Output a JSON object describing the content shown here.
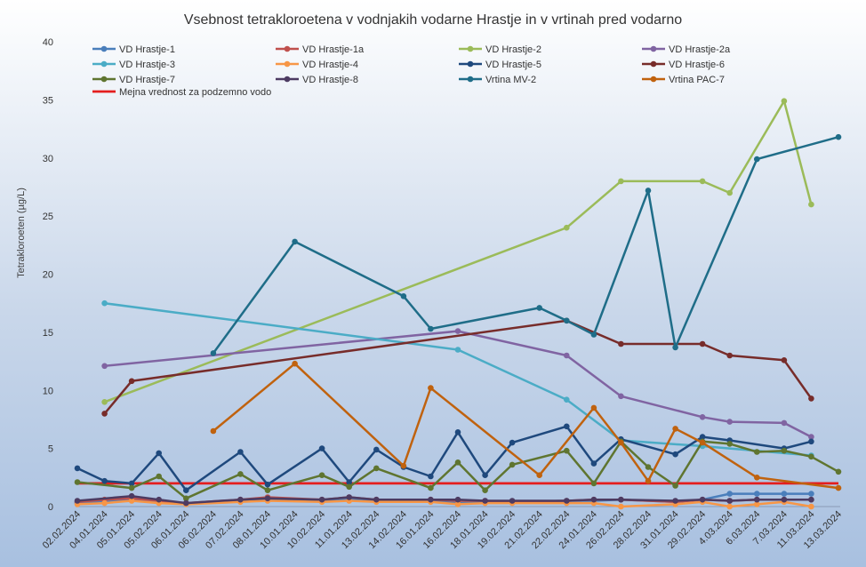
{
  "chart_data": {
    "type": "line",
    "title": "Vsebnost tetrakloroetena v vodnjakih vodarne Hrastje in v vrtinah pred vodarno",
    "ylabel": "Tetrakloroeten  (µg/L)",
    "xlabel": "",
    "ylim": [
      0,
      40
    ],
    "yticks": [
      0,
      5,
      10,
      15,
      20,
      25,
      30,
      35,
      40
    ],
    "grid": false,
    "legend_position": "top",
    "categories": [
      "02.02.2024",
      "04.01.2024",
      "05.01.2024",
      "05.02.2024",
      "06.01.2024",
      "06.02.2024",
      "07.02.2024",
      "08.01.2024",
      "10.01.2024",
      "10.02.2024",
      "11.01.2024",
      "13.02.2024",
      "14.02.2024",
      "16.01.2024",
      "16.02.2024",
      "18.01.2024",
      "19.02.2024",
      "21.02.2024",
      "22.02.2024",
      "24.01.2024",
      "26.02.2024",
      "28.02.2024",
      "31.01.2024",
      "29.02.2024",
      "4.03.2024",
      "6.03.2024",
      "7.03.2024",
      "11.03.2024",
      "13.03.2024"
    ],
    "limit_line": {
      "name": "Mejna vrednost za podzemno vodo",
      "value": 2,
      "color": "#E41E1E"
    },
    "series": [
      {
        "name": "VD Hrastje-1",
        "color": "#4A7EBB",
        "values": [
          0.3,
          0.5,
          0.6,
          0.4,
          0.3,
          null,
          0.5,
          0.6,
          null,
          0.5,
          0.6,
          0.5,
          null,
          0.5,
          0.3,
          0.4,
          0.4,
          null,
          0.5,
          0.5,
          0.6,
          null,
          0.4,
          0.6,
          1.1,
          1.1,
          1.1,
          1.1,
          null
        ]
      },
      {
        "name": "VD Hrastje-1a",
        "color": "#C0504D",
        "values": [
          0.4,
          0.6,
          0.7,
          0.5,
          0.3,
          null,
          0.6,
          0.8,
          null,
          0.6,
          0.8,
          0.6,
          null,
          0.6,
          0.5,
          0.5,
          0.4,
          null,
          0.5,
          0.6,
          0.6,
          null,
          0.4,
          0.6,
          0.5,
          0.6,
          0.6,
          0.6,
          null
        ]
      },
      {
        "name": "VD Hrastje-2",
        "color": "#9BBB59",
        "values": [
          null,
          9.0,
          null,
          null,
          null,
          null,
          null,
          null,
          null,
          null,
          null,
          null,
          null,
          null,
          null,
          null,
          null,
          null,
          24.0,
          null,
          28.0,
          null,
          null,
          28.0,
          27.0,
          null,
          34.9,
          26.0,
          null
        ]
      },
      {
        "name": "VD Hrastje-2a",
        "color": "#8064A2",
        "values": [
          null,
          12.1,
          null,
          null,
          null,
          null,
          null,
          null,
          null,
          null,
          null,
          null,
          null,
          null,
          15.1,
          null,
          null,
          null,
          13.0,
          null,
          9.5,
          null,
          null,
          7.7,
          7.3,
          null,
          7.2,
          6.0,
          null
        ]
      },
      {
        "name": "VD Hrastje-3",
        "color": "#4BACC6",
        "values": [
          null,
          17.5,
          null,
          null,
          null,
          null,
          null,
          null,
          null,
          null,
          null,
          null,
          null,
          null,
          13.5,
          null,
          null,
          null,
          9.2,
          null,
          5.7,
          null,
          null,
          5.2,
          null,
          null,
          null,
          4.4,
          null
        ]
      },
      {
        "name": "VD Hrastje-4",
        "color": "#F79646",
        "values": [
          0.2,
          0.3,
          0.5,
          0.3,
          0.2,
          null,
          0.4,
          0.5,
          null,
          0.4,
          0.5,
          0.4,
          null,
          0.4,
          0.2,
          0.3,
          0.3,
          null,
          0.3,
          0.3,
          0.0,
          null,
          0.2,
          0.4,
          0.0,
          0.2,
          0.4,
          0.0,
          null
        ]
      },
      {
        "name": "VD Hrastje-5",
        "color": "#1F497D",
        "values": [
          3.3,
          2.2,
          2.0,
          4.6,
          1.4,
          null,
          4.7,
          1.9,
          null,
          5.0,
          2.1,
          4.9,
          3.4,
          2.6,
          6.4,
          2.7,
          5.5,
          null,
          6.9,
          3.7,
          5.8,
          null,
          4.5,
          6.0,
          5.7,
          null,
          5.0,
          5.6,
          null
        ]
      },
      {
        "name": "VD Hrastje-6",
        "color": "#772C2A",
        "values": [
          null,
          8.0,
          10.8,
          null,
          null,
          null,
          null,
          null,
          null,
          null,
          null,
          null,
          null,
          null,
          null,
          null,
          null,
          null,
          16.0,
          null,
          14.0,
          null,
          null,
          14.0,
          13.0,
          null,
          12.6,
          9.3,
          null
        ]
      },
      {
        "name": "VD Hrastje-7",
        "color": "#5F7530",
        "values": [
          2.1,
          null,
          1.6,
          2.6,
          0.7,
          null,
          2.8,
          1.4,
          null,
          2.7,
          1.7,
          3.3,
          null,
          1.6,
          3.8,
          1.4,
          3.6,
          null,
          4.8,
          2.0,
          5.6,
          3.4,
          1.8,
          5.6,
          5.4,
          4.7,
          4.8,
          4.3,
          3.0
        ]
      },
      {
        "name": "VD Hrastje-8",
        "color": "#4D3B62",
        "values": [
          0.5,
          null,
          0.9,
          0.6,
          0.3,
          null,
          0.6,
          0.7,
          null,
          0.6,
          0.8,
          0.6,
          null,
          0.6,
          0.6,
          0.5,
          0.5,
          null,
          0.5,
          0.6,
          0.6,
          null,
          0.5,
          0.6,
          0.5,
          0.6,
          0.6,
          0.6,
          null
        ]
      },
      {
        "name": "Vrtina MV-2",
        "color": "#1F6D88",
        "values": [
          null,
          null,
          null,
          null,
          null,
          13.2,
          null,
          null,
          22.8,
          null,
          null,
          null,
          18.1,
          15.3,
          null,
          null,
          null,
          17.1,
          16.0,
          14.8,
          null,
          27.2,
          13.7,
          null,
          null,
          29.9,
          null,
          null,
          31.8
        ]
      },
      {
        "name": "Vrtina PAC-7",
        "color": "#C0620E",
        "values": [
          null,
          null,
          null,
          null,
          null,
          6.5,
          null,
          null,
          12.3,
          null,
          null,
          null,
          3.5,
          10.2,
          null,
          null,
          null,
          2.7,
          null,
          8.5,
          5.5,
          2.2,
          6.7,
          5.5,
          null,
          2.5,
          null,
          null,
          1.6
        ]
      }
    ]
  }
}
